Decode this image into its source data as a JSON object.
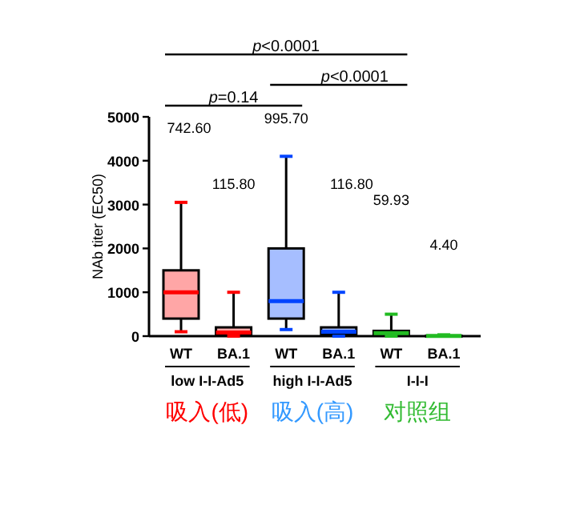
{
  "chart_data": {
    "type": "box",
    "ylabel": "NAb titer (EC50)",
    "categories": [
      "WT",
      "BA.1",
      "WT",
      "BA.1",
      "WT",
      "BA.1"
    ],
    "boxes": [
      {
        "low": 100,
        "q1": 400,
        "median": 1000,
        "q3": 1500,
        "high": 3050
      },
      {
        "low": 0,
        "q1": 20,
        "median": 80,
        "q3": 200,
        "high": 1000
      },
      {
        "low": 150,
        "q1": 400,
        "median": 800,
        "q3": 2000,
        "high": 4100
      },
      {
        "low": 0,
        "q1": 30,
        "median": 100,
        "q3": 200,
        "high": 1000
      },
      {
        "low": 0,
        "q1": 30,
        "median": 70,
        "q3": 120,
        "high": 500
      },
      {
        "low": 0,
        "q1": 0,
        "median": 5,
        "q3": 10,
        "high": 30
      }
    ],
    "colors": [
      "#ff0000",
      "#ff0000",
      "#0044ff",
      "#0044ff",
      "#22bb22",
      "#22bb22"
    ],
    "ylim": [
      0,
      5000
    ],
    "yticks": [
      0,
      1000,
      2000,
      3000,
      4000,
      5000
    ],
    "annotations": [
      "742.60",
      "115.80",
      "995.70",
      "116.80",
      "59.93",
      "4.40",
      "*p*<0.0001",
      "*p*<0.0001",
      "*p*=0.14",
      "low I-I-Ad5",
      "high I-I-Ad5",
      "I-I-I",
      "吸入(低)",
      "吸入(高)",
      "对照组"
    ]
  }
}
